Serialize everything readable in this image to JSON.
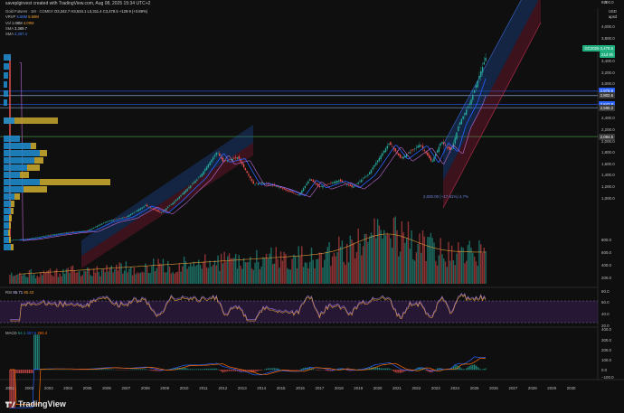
{
  "header": {
    "caption": "saveplgirvest created with TradingView.com, Aug 08, 2025 15:34 UTC+2"
  },
  "legend": {
    "symbol_line": "Gold Futures · 1M · COMEX",
    "ohlc": "O3,342.7 H3,534.1 L3,311.4 C3,478.5 +129.9 (+3.88%)",
    "vrvp_label": "VRVP",
    "vrvp_v1": "5.58M",
    "vrvp_v2": "5.68M",
    "vol_label": "Vol",
    "vol_v1": "1.08M",
    "vol_v2": "4.09M",
    "sma1_label": "SMA",
    "sma1_value": "3,369.7",
    "sma2_label": "SMA",
    "sma2_value": "2,367.4"
  },
  "price_axis": {
    "currency": "USD",
    "mode": "apsd",
    "ticks": [
      "4,000.0",
      "3,800.0",
      "3,600.0",
      "3,400.0",
      "3,200.0",
      "3,000.0",
      "2,800.0",
      "2,600.0",
      "2,400.0",
      "2,200.0",
      "2,000.0",
      "1,800.0",
      "1,600.0",
      "1,400.0",
      "1,200.0",
      "1,000.0",
      "800.0",
      "600.0",
      "400.0",
      "200.0",
      "0.0",
      "−200.0"
    ],
    "tags": [
      {
        "label": "GC2025",
        "value": "3,478.5",
        "sub": "21d 9h",
        "color": "#1fae7d"
      },
      {
        "value": "2,879.9",
        "color": "#2962ff"
      },
      {
        "value": "2,802.6",
        "color": "#3a3a3a"
      },
      {
        "value": "2,647.8",
        "color": "#2962ff"
      },
      {
        "value": "2,590.2",
        "color": "#3a3a3a"
      },
      {
        "value": "2,084.5",
        "color": "#3a3a3a"
      }
    ]
  },
  "annotation": "2,000.00 (+17.91%) 4,7%",
  "volume_axis": [
    "400.0",
    "200.0",
    "0.0",
    "−200.0"
  ],
  "rsi": {
    "label": "RSI",
    "v1": "86.71",
    "v2": "80.43",
    "ticks": [
      "80.0",
      "60.0",
      "40.0",
      "20.0"
    ]
  },
  "macd": {
    "label": "MACD",
    "v1": "64.1",
    "v2": "357.5",
    "v3": "293.4",
    "ticks": [
      "400.0",
      "300.0",
      "200.0",
      "100.0",
      "0.0",
      "−100.0"
    ]
  },
  "time_axis": [
    "2001",
    "2002",
    "2003",
    "2004",
    "2005",
    "2006",
    "2007",
    "2008",
    "2009",
    "2010",
    "2011",
    "2012",
    "2013",
    "2014",
    "2015",
    "2016",
    "2017",
    "2018",
    "2019",
    "2020",
    "2021",
    "2022",
    "2023",
    "2024",
    "2025",
    "2026",
    "2027",
    "2028",
    "2029",
    "2030"
  ],
  "brand": "TradingView",
  "colors": {
    "bull": "#26a69a",
    "bear": "#ef5350",
    "sma_blue": "#2962ff",
    "sma_orange": "#f0a030",
    "channel_blue": "#1e5bb8",
    "channel_red": "#b22244",
    "rsi_band": "#3b1f55"
  }
}
